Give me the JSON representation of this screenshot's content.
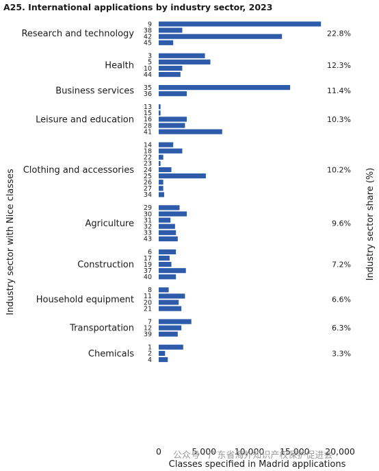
{
  "chart_data": {
    "type": "bar",
    "orientation": "horizontal",
    "title": "A25. International applications by industry sector, 2023",
    "xlabel": "Classes specified in Madrid applications",
    "ylabel": "Industry sector with Nice classes",
    "y2label": "Industry sector share (%)",
    "xlim": [
      0,
      20000
    ],
    "xticks": [
      "0",
      "5,000",
      "10,000",
      "15,000",
      "20,000"
    ],
    "bar_color": "#2e5cab",
    "sectors": [
      {
        "name": "Research and technology",
        "share": "22.8%",
        "classes": [
          {
            "class": "9",
            "value": 17900
          },
          {
            "class": "38",
            "value": 2600
          },
          {
            "class": "42",
            "value": 13600
          },
          {
            "class": "45",
            "value": 1600
          }
        ]
      },
      {
        "name": "Health",
        "share": "12.3%",
        "classes": [
          {
            "class": "3",
            "value": 5100
          },
          {
            "class": "5",
            "value": 5700
          },
          {
            "class": "10",
            "value": 2600
          },
          {
            "class": "44",
            "value": 2400
          }
        ]
      },
      {
        "name": "Business services",
        "share": "11.4%",
        "classes": [
          {
            "class": "35",
            "value": 14500
          },
          {
            "class": "36",
            "value": 3100
          }
        ]
      },
      {
        "name": "Leisure and education",
        "share": "10.3%",
        "classes": [
          {
            "class": "13",
            "value": 200
          },
          {
            "class": "15",
            "value": 200
          },
          {
            "class": "16",
            "value": 3100
          },
          {
            "class": "28",
            "value": 2900
          },
          {
            "class": "41",
            "value": 7000
          }
        ]
      },
      {
        "name": "Clothing and accessories",
        "share": "10.2%",
        "classes": [
          {
            "class": "14",
            "value": 1600
          },
          {
            "class": "18",
            "value": 2600
          },
          {
            "class": "22",
            "value": 500
          },
          {
            "class": "23",
            "value": 200
          },
          {
            "class": "24",
            "value": 1400
          },
          {
            "class": "25",
            "value": 5200
          },
          {
            "class": "26",
            "value": 500
          },
          {
            "class": "27",
            "value": 500
          },
          {
            "class": "34",
            "value": 600
          }
        ]
      },
      {
        "name": "Agriculture",
        "share": "9.6%",
        "classes": [
          {
            "class": "29",
            "value": 2300
          },
          {
            "class": "30",
            "value": 3100
          },
          {
            "class": "31",
            "value": 1300
          },
          {
            "class": "32",
            "value": 1800
          },
          {
            "class": "33",
            "value": 1900
          },
          {
            "class": "43",
            "value": 2100
          }
        ]
      },
      {
        "name": "Construction",
        "share": "7.2%",
        "classes": [
          {
            "class": "6",
            "value": 1900
          },
          {
            "class": "17",
            "value": 1200
          },
          {
            "class": "19",
            "value": 1400
          },
          {
            "class": "37",
            "value": 3000
          },
          {
            "class": "40",
            "value": 1900
          }
        ]
      },
      {
        "name": "Household equipment",
        "share": "6.6%",
        "classes": [
          {
            "class": "8",
            "value": 1100
          },
          {
            "class": "11",
            "value": 2900
          },
          {
            "class": "20",
            "value": 2200
          },
          {
            "class": "21",
            "value": 2500
          }
        ]
      },
      {
        "name": "Transportation",
        "share": "6.3%",
        "classes": [
          {
            "class": "7",
            "value": 3600
          },
          {
            "class": "12",
            "value": 2500
          },
          {
            "class": "39",
            "value": 2100
          }
        ]
      },
      {
        "name": "Chemicals",
        "share": "3.3%",
        "classes": [
          {
            "class": "1",
            "value": 2700
          },
          {
            "class": "2",
            "value": 700
          },
          {
            "class": "4",
            "value": 1000
          }
        ]
      }
    ]
  },
  "watermark": "公众号 · 广东省海外知识产权保护促进会"
}
